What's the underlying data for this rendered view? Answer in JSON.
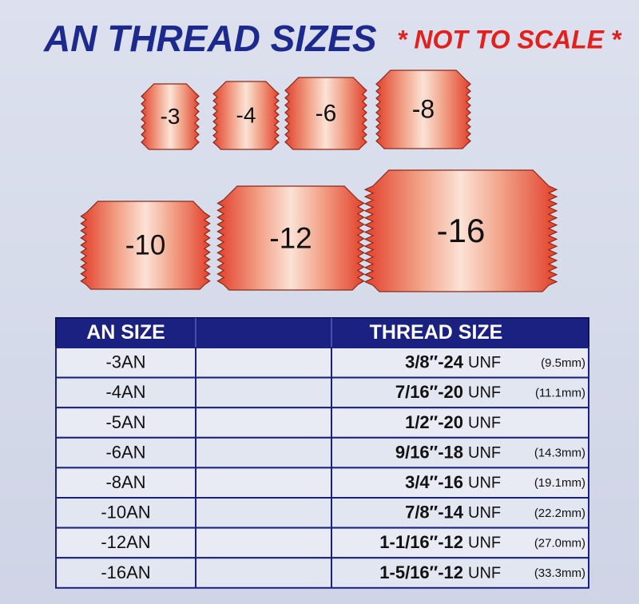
{
  "header": {
    "title": "AN THREAD SIZES",
    "note": "* NOT TO SCALE *"
  },
  "fittings": [
    {
      "label": "-3"
    },
    {
      "label": "-4"
    },
    {
      "label": "-6"
    },
    {
      "label": "-8"
    },
    {
      "label": "-10"
    },
    {
      "label": "-12"
    },
    {
      "label": "-16"
    }
  ],
  "table": {
    "headers": [
      "AN SIZE",
      "THREAD SIZE"
    ],
    "rows": [
      {
        "an": "-3AN",
        "thread": "3/8″-24",
        "unit": "UNF",
        "mm": "(9.5mm)"
      },
      {
        "an": "-4AN",
        "thread": "7/16″-20",
        "unit": "UNF",
        "mm": "(11.1mm)"
      },
      {
        "an": "-5AN",
        "thread": "1/2″-20",
        "unit": "UNF"
      },
      {
        "an": "-6AN",
        "thread": "9/16″-18",
        "unit": "UNF",
        "mm": "(14.3mm)"
      },
      {
        "an": "-8AN",
        "thread": "3/4″-16",
        "unit": "UNF",
        "mm": "(19.1mm)"
      },
      {
        "an": "-10AN",
        "thread": "7/8″-14",
        "unit": "UNF",
        "mm": "(22.2mm)"
      },
      {
        "an": "-12AN",
        "thread": "1-1/16″-12",
        "unit": "UNF",
        "mm": "(27.0mm)"
      },
      {
        "an": "-16AN",
        "thread": "1-5/16″-12",
        "unit": "UNF",
        "mm": "(33.3mm)"
      }
    ]
  }
}
